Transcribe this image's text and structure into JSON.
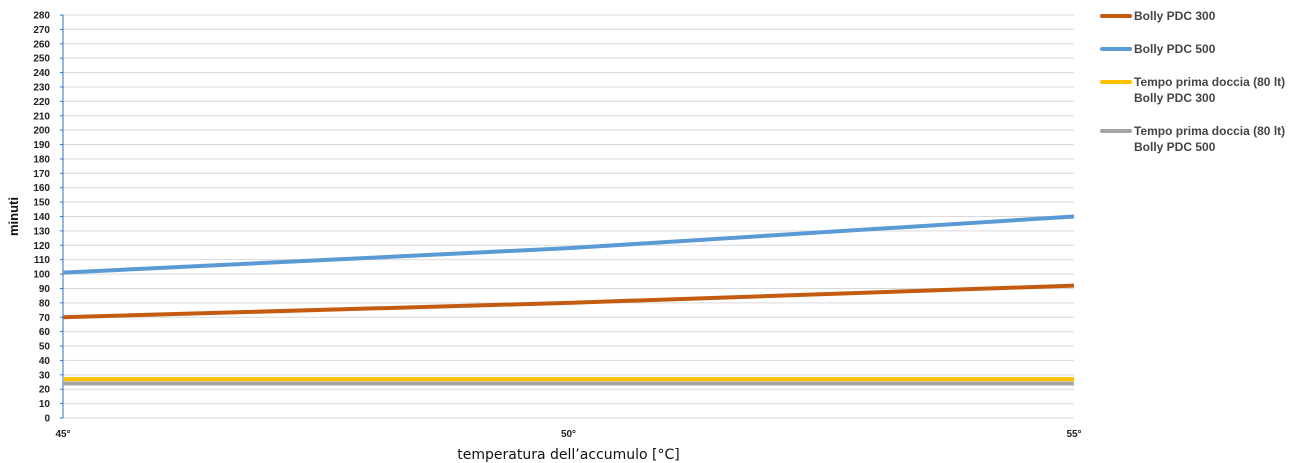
{
  "chart_data": {
    "type": "line",
    "x": [
      "45°",
      "50°",
      "55°"
    ],
    "xlabel": "temperatura dell’accumulo [°C]",
    "ylabel": "minuti",
    "ylim": [
      0,
      280
    ],
    "yticks": [
      0,
      10,
      20,
      30,
      40,
      50,
      60,
      70,
      80,
      90,
      100,
      110,
      120,
      130,
      140,
      150,
      160,
      170,
      180,
      190,
      200,
      210,
      220,
      230,
      240,
      250,
      260,
      270,
      280
    ],
    "grid": true,
    "legend_position": "right",
    "series": [
      {
        "name": "Bolly PDC 300",
        "values": [
          70,
          80,
          92
        ],
        "color": "#C55A11"
      },
      {
        "name": "Bolly PDC 500",
        "values": [
          101,
          118,
          140
        ],
        "color": "#5B9BD5"
      },
      {
        "name_lines": [
          "Tempo prima doccia (80 lt)",
          "Bolly PDC 300"
        ],
        "values": [
          27,
          27,
          27
        ],
        "color": "#FFC000"
      },
      {
        "name_lines": [
          "Tempo prima doccia (80 lt)",
          "Bolly PDC 500"
        ],
        "values": [
          24,
          24,
          24
        ],
        "color": "#A5A5A5"
      }
    ]
  }
}
